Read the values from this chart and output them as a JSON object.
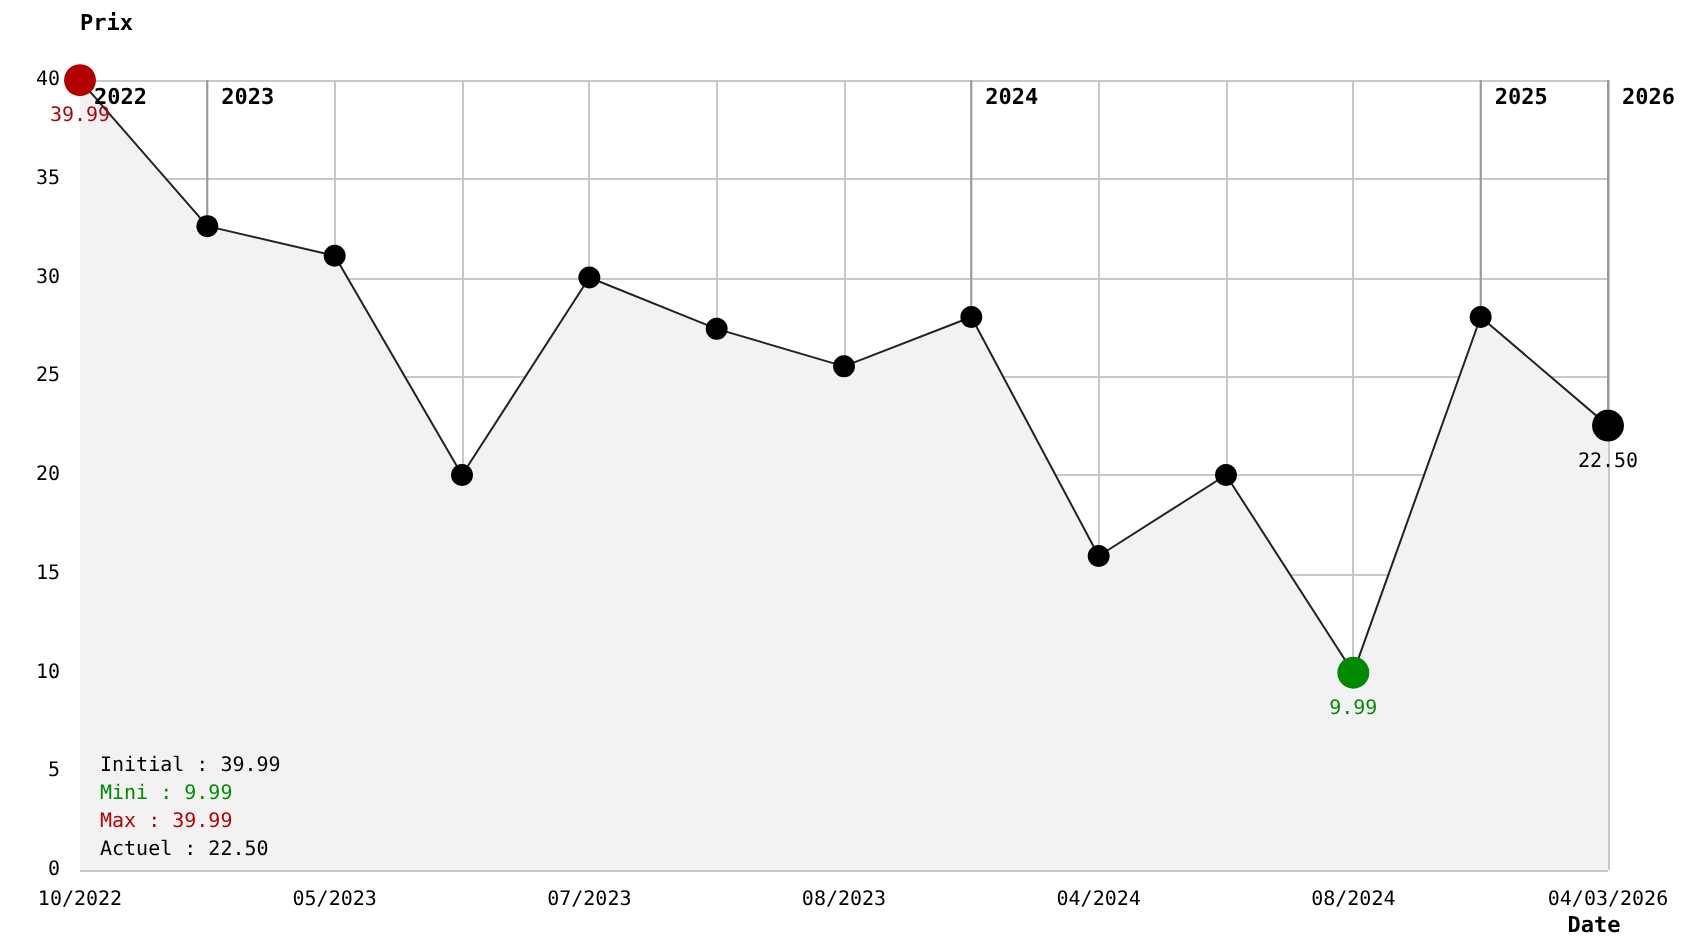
{
  "chart_data": {
    "type": "area",
    "xlabel": "Date",
    "ylabel": "Prix",
    "categories": [
      "10/2022",
      null,
      "05/2023",
      null,
      "07/2023",
      null,
      "08/2023",
      null,
      "04/2024",
      null,
      "08/2024",
      null,
      "04/03/2026"
    ],
    "values": [
      39.99,
      32.6,
      31.1,
      20,
      30,
      27.4,
      25.5,
      28,
      15.9,
      20,
      9.99,
      28,
      22.5
    ],
    "color": "#f2f2f2",
    "colors": [
      "#b30000",
      "#000000",
      "#000000",
      "#000000",
      "#000000",
      "#000000",
      "#000000",
      "#000000",
      "#000000",
      "#000000",
      "#008a00",
      "#000000",
      "#000000"
    ],
    "value_labels": [
      "39.99",
      null,
      null,
      null,
      null,
      null,
      null,
      null,
      null,
      null,
      "9.99",
      null,
      "22.50"
    ],
    "ylim": [
      0,
      40
    ],
    "yticks": [
      0,
      5,
      10,
      15,
      20,
      25,
      30,
      35,
      40
    ],
    "grid": true,
    "marker": "circle",
    "ref_lines": [
      {
        "axis": "x",
        "value": "04/03/2026",
        "label": "2026",
        "color": "#999999"
      }
    ],
    "annotations": [
      "2022",
      "2023",
      "2024",
      "2025",
      "Initial : 39.99",
      "Mini : 9.99",
      "Max : 39.99",
      "Actuel : 22.50"
    ]
  }
}
